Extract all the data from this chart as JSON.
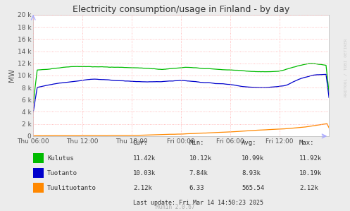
{
  "title": "Electricity consumption/usage in Finland - by day",
  "ylabel": "MW",
  "background_color": "#ececec",
  "plot_bg_color": "#ffffff",
  "grid_color_major": "#ffaaaa",
  "grid_color_minor": "#ffdddd",
  "ylim": [
    0,
    20000
  ],
  "yticks": [
    0,
    2000,
    4000,
    6000,
    8000,
    10000,
    12000,
    14000,
    16000,
    18000,
    20000
  ],
  "ytick_labels": [
    "0",
    "2 k",
    "4 k",
    "6 k",
    "8 k",
    "10 k",
    "12 k",
    "14 k",
    "16 k",
    "18 k",
    "20 k"
  ],
  "xtick_labels": [
    "Thu 06:00",
    "Thu 12:00",
    "Thu 18:00",
    "Fri 00:00",
    "Fri 06:00",
    "Fri 12:00"
  ],
  "series": {
    "kulutus": {
      "color": "#00bb00",
      "label": "Kulutus",
      "cur": "11.42k",
      "min": "10.12k",
      "avg": "10.99k",
      "max": "11.92k"
    },
    "tuotanto": {
      "color": "#0000cc",
      "label": "Tuotanto",
      "cur": "10.03k",
      "min": "7.84k",
      "avg": "8.93k",
      "max": "10.19k"
    },
    "tuulituotanto": {
      "color": "#ff8800",
      "label": "Tuulituotanto",
      "cur": "2.12k",
      "min": "6.33",
      "avg": "565.54",
      "max": "2.12k"
    }
  },
  "watermark": "RRDTOOL / TOBI OETIKER",
  "last_update": "Last update: Fri Mar 14 14:50:23 2025",
  "munin_version": "Munin 2.0.67"
}
